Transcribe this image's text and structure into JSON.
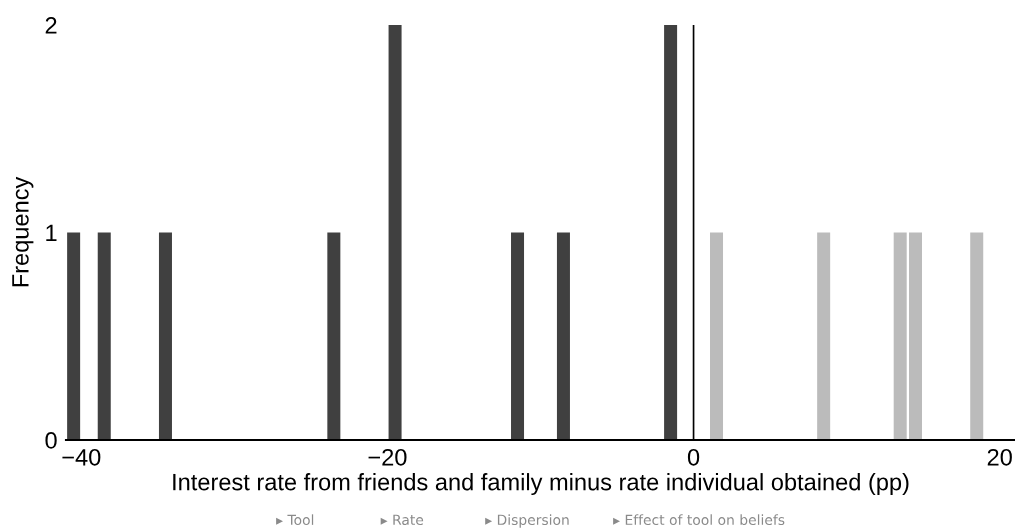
{
  "chart_data": {
    "type": "bar",
    "xlabel": "Interest rate from friends and family minus rate individual obtained (pp)",
    "ylabel": "Frequency",
    "series": [
      {
        "color": "#404040",
        "x": [
          -40.5,
          -38.5,
          -34.5,
          -23.5,
          -19.5,
          -11.5,
          -8.5,
          -1.5
        ],
        "values": [
          1,
          1,
          1,
          1,
          2,
          1,
          1,
          2
        ]
      },
      {
        "color": "#bbbbbb",
        "x": [
          1.5,
          8.5,
          13.5,
          14.5,
          18.5
        ],
        "values": [
          1,
          1,
          1,
          1,
          1
        ]
      }
    ],
    "xlim": [
      -41,
      21
    ],
    "xticks": [
      {
        "value": -40,
        "label": "−40"
      },
      {
        "value": -20,
        "label": "−20"
      },
      0,
      20
    ],
    "ylim": [
      0,
      2
    ],
    "yticks": [
      0,
      1,
      2
    ],
    "ref_lines": [
      {
        "axis": "x",
        "value": 0,
        "color": "#000000"
      }
    ],
    "grid": false,
    "legend": false,
    "annotations": [
      "▸ Tool",
      "▸ Rate",
      "▸ Dispersion",
      "▸ Effect of tool on beliefs"
    ]
  }
}
